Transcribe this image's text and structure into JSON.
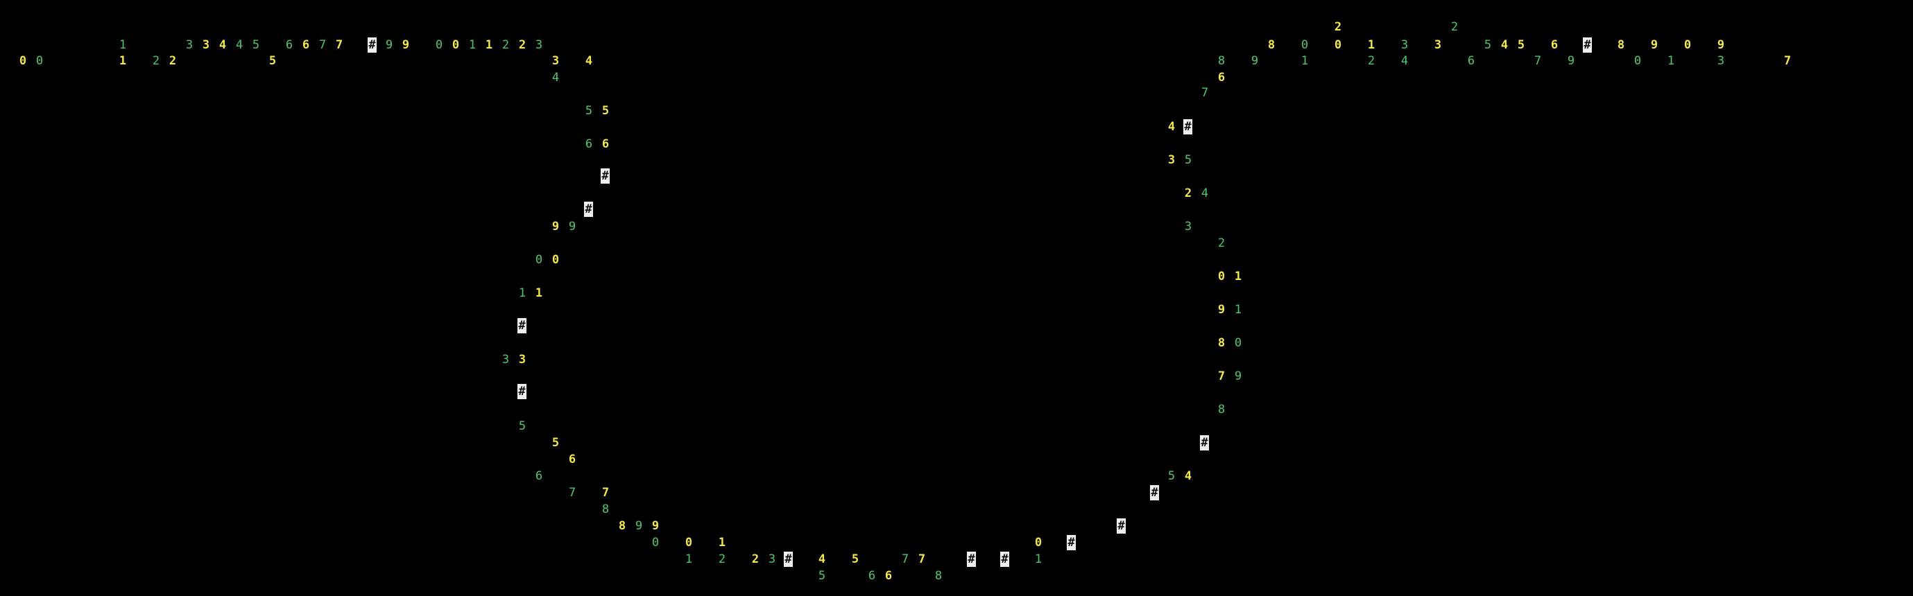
{
  "palette": {
    "background": "#000000",
    "green": "#4fc76e",
    "yellow": "#f2e84a",
    "cursor": "#eeeeee"
  },
  "glyphs": [
    {
      "t": "1",
      "c": "green"
    },
    {
      "t": "3",
      "c": "green"
    },
    {
      "t": "3",
      "c": "yellow"
    },
    {
      "t": "4",
      "c": "yellow"
    },
    {
      "t": "4",
      "c": "green"
    },
    {
      "t": "5",
      "c": "green"
    },
    {
      "t": "6",
      "c": "green"
    },
    {
      "t": "6",
      "c": "yellow"
    },
    {
      "t": "7",
      "c": "green"
    },
    {
      "t": "7",
      "c": "yellow"
    },
    {
      "t": "#",
      "c": "white"
    },
    {
      "t": "9",
      "c": "green"
    },
    {
      "t": "9",
      "c": "yellow"
    },
    {
      "t": "0",
      "c": "green"
    },
    {
      "t": "0",
      "c": "yellow"
    },
    {
      "t": "1",
      "c": "green"
    },
    {
      "t": "1",
      "c": "yellow"
    },
    {
      "t": "2",
      "c": "green"
    },
    {
      "t": "2",
      "c": "yellow"
    },
    {
      "t": "3",
      "c": "green"
    },
    {
      "t": "0",
      "c": "yellow"
    },
    {
      "t": "0",
      "c": "green"
    },
    {
      "t": "1",
      "c": "yellow"
    },
    {
      "t": "2",
      "c": "green"
    },
    {
      "t": "2",
      "c": "yellow"
    },
    {
      "t": "5",
      "c": "yellow"
    },
    {
      "t": "3",
      "c": "yellow"
    },
    {
      "t": "4",
      "c": "yellow"
    },
    {
      "t": "4",
      "c": "green"
    },
    {
      "t": "5",
      "c": "green"
    },
    {
      "t": "5",
      "c": "yellow"
    },
    {
      "t": "6",
      "c": "green"
    },
    {
      "t": "6",
      "c": "yellow"
    },
    {
      "t": "#",
      "c": "white"
    },
    {
      "t": "#",
      "c": "white"
    },
    {
      "t": "9",
      "c": "yellow"
    },
    {
      "t": "9",
      "c": "green"
    },
    {
      "t": "0",
      "c": "green"
    },
    {
      "t": "0",
      "c": "yellow"
    },
    {
      "t": "1",
      "c": "green"
    },
    {
      "t": "1",
      "c": "yellow"
    },
    {
      "t": "#",
      "c": "white"
    },
    {
      "t": "3",
      "c": "green"
    },
    {
      "t": "3",
      "c": "yellow"
    },
    {
      "t": "#",
      "c": "white"
    },
    {
      "t": "5",
      "c": "green"
    },
    {
      "t": "5",
      "c": "yellow"
    },
    {
      "t": "6",
      "c": "yellow"
    },
    {
      "t": "6",
      "c": "green"
    },
    {
      "t": "7",
      "c": "green"
    },
    {
      "t": "7",
      "c": "yellow"
    },
    {
      "t": "8",
      "c": "green"
    },
    {
      "t": "8",
      "c": "yellow"
    },
    {
      "t": "9",
      "c": "green"
    },
    {
      "t": "9",
      "c": "yellow"
    },
    {
      "t": "0",
      "c": "green"
    },
    {
      "t": "0",
      "c": "yellow"
    },
    {
      "t": "1",
      "c": "yellow"
    },
    {
      "t": "0",
      "c": "yellow"
    },
    {
      "t": "#",
      "c": "white"
    },
    {
      "t": "1",
      "c": "green"
    },
    {
      "t": "2",
      "c": "green"
    },
    {
      "t": "2",
      "c": "yellow"
    },
    {
      "t": "3",
      "c": "green"
    },
    {
      "t": "#",
      "c": "white"
    },
    {
      "t": "4",
      "c": "yellow"
    },
    {
      "t": "5",
      "c": "yellow"
    },
    {
      "t": "7",
      "c": "green"
    },
    {
      "t": "7",
      "c": "yellow"
    },
    {
      "t": "#",
      "c": "white"
    },
    {
      "t": "#",
      "c": "white"
    },
    {
      "t": "1",
      "c": "green"
    },
    {
      "t": "5",
      "c": "green"
    },
    {
      "t": "6",
      "c": "green"
    },
    {
      "t": "6",
      "c": "yellow"
    },
    {
      "t": "8",
      "c": "green"
    },
    {
      "t": "#",
      "c": "white"
    },
    {
      "t": "#",
      "c": "white"
    },
    {
      "t": "5",
      "c": "green"
    },
    {
      "t": "4",
      "c": "yellow"
    },
    {
      "t": "#",
      "c": "white"
    },
    {
      "t": "8",
      "c": "green"
    },
    {
      "t": "7",
      "c": "yellow"
    },
    {
      "t": "9",
      "c": "green"
    },
    {
      "t": "8",
      "c": "yellow"
    },
    {
      "t": "0",
      "c": "green"
    },
    {
      "t": "9",
      "c": "yellow"
    },
    {
      "t": "1",
      "c": "green"
    },
    {
      "t": "0",
      "c": "yellow"
    },
    {
      "t": "1",
      "c": "yellow"
    },
    {
      "t": "2",
      "c": "green"
    },
    {
      "t": "3",
      "c": "green"
    },
    {
      "t": "2",
      "c": "yellow"
    },
    {
      "t": "4",
      "c": "green"
    },
    {
      "t": "3",
      "c": "yellow"
    },
    {
      "t": "5",
      "c": "green"
    },
    {
      "t": "4",
      "c": "yellow"
    },
    {
      "t": "#",
      "c": "white"
    },
    {
      "t": "7",
      "c": "green"
    },
    {
      "t": "6",
      "c": "yellow"
    },
    {
      "t": "8",
      "c": "green"
    },
    {
      "t": "9",
      "c": "green"
    },
    {
      "t": "1",
      "c": "green"
    },
    {
      "t": "2",
      "c": "green"
    },
    {
      "t": "4",
      "c": "green"
    },
    {
      "t": "6",
      "c": "green"
    },
    {
      "t": "7",
      "c": "green"
    },
    {
      "t": "9",
      "c": "green"
    },
    {
      "t": "0",
      "c": "green"
    },
    {
      "t": "1",
      "c": "green"
    },
    {
      "t": "3",
      "c": "green"
    },
    {
      "t": "7",
      "c": "yellow"
    },
    {
      "t": "8",
      "c": "yellow"
    },
    {
      "t": "0",
      "c": "green"
    },
    {
      "t": "0",
      "c": "yellow"
    },
    {
      "t": "1",
      "c": "yellow"
    },
    {
      "t": "3",
      "c": "green"
    },
    {
      "t": "3",
      "c": "yellow"
    },
    {
      "t": "5",
      "c": "green"
    },
    {
      "t": "4",
      "c": "yellow"
    },
    {
      "t": "5",
      "c": "yellow"
    },
    {
      "t": "6",
      "c": "yellow"
    },
    {
      "t": "#",
      "c": "white"
    },
    {
      "t": "8",
      "c": "yellow"
    },
    {
      "t": "9",
      "c": "yellow"
    },
    {
      "t": "0",
      "c": "yellow"
    },
    {
      "t": "9",
      "c": "yellow"
    },
    {
      "t": "2",
      "c": "yellow"
    },
    {
      "t": "2",
      "c": "green"
    }
  ]
}
